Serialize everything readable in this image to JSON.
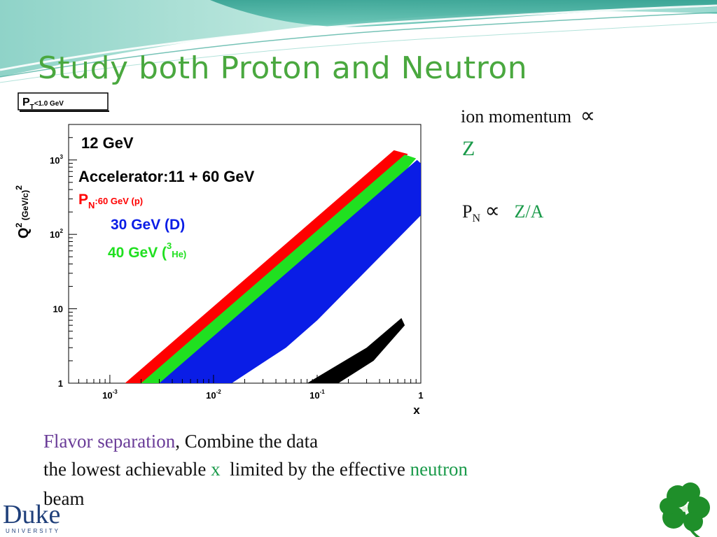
{
  "slide": {
    "title": "Study both Proton and Neutron",
    "colors": {
      "title": "#4aa83f",
      "accent_green": "#1a9a4a",
      "accent_purple": "#6a3c98"
    },
    "right_notes": {
      "line1_text": "ion momentum",
      "line1_symbol": "∝",
      "line2_var": "Z",
      "line3_var": "P",
      "line3_sub": "N",
      "line3_symbol": "∝",
      "line3_value": "Z/A"
    },
    "bottom_text": {
      "line1_highlight": "Flavor separation",
      "line1_rest": ", Combine the data",
      "line2_part1": "the lowest achievable ",
      "line2_x": "x",
      "line2_part2": "  limited by the effective ",
      "line2_neutron": "neutron",
      "line3": "beam"
    },
    "logo": {
      "name": "Duke",
      "sub": "UNIVERSITY"
    }
  },
  "chart_data": {
    "type": "scatter",
    "cut_label_main": "P",
    "cut_label_sub": "T",
    "cut_label_rest": "<1.0 GeV",
    "xlabel": "x",
    "ylabel_main": "Q",
    "ylabel_sup": "2",
    "ylabel_rest": " (GeV/c)",
    "ylabel_sup2": "2",
    "x_scale": "log",
    "y_scale": "log",
    "xlim": [
      0.0004,
      1
    ],
    "ylim": [
      1,
      3000
    ],
    "x_ticks": [
      {
        "value": 0.001,
        "base": "10",
        "exp": "-3"
      },
      {
        "value": 0.01,
        "base": "10",
        "exp": "-2"
      },
      {
        "value": 0.1,
        "base": "10",
        "exp": "-1"
      },
      {
        "value": 1,
        "base": "1",
        "exp": ""
      }
    ],
    "y_ticks": [
      {
        "value": 1,
        "base": "1",
        "exp": ""
      },
      {
        "value": 10,
        "base": "10",
        "exp": ""
      },
      {
        "value": 100,
        "base": "10",
        "exp": "2"
      },
      {
        "value": 1000,
        "base": "10",
        "exp": "3"
      }
    ],
    "legend": {
      "label_12gev": "12 GeV",
      "accelerator": "Accelerator:11 + 60 GeV",
      "proton_main": "P",
      "proton_sub": "N",
      "proton_rest": ":60 GeV (p)",
      "deuteron": "30 GeV (D)",
      "helium_prefix": "40 GeV (",
      "helium_sup": "3",
      "helium_suffix": "He)"
    },
    "series": [
      {
        "name": "60 GeV (p)",
        "color": "#ff0000",
        "region": [
          [
            0.0014,
            1
          ],
          [
            0.55,
            1350
          ],
          [
            0.75,
            1200
          ],
          [
            0.012,
            1
          ]
        ]
      },
      {
        "name": "40 GeV (3He)",
        "color": "#20e020",
        "region": [
          [
            0.002,
            1
          ],
          [
            0.7,
            1180
          ],
          [
            0.9,
            1050
          ],
          [
            0.012,
            1
          ]
        ]
      },
      {
        "name": "30 GeV (D)",
        "color": "#0a1de6",
        "region": [
          [
            0.003,
            1
          ],
          [
            0.92,
            1000
          ],
          [
            1,
            900
          ],
          [
            1,
            180
          ],
          [
            0.1,
            7
          ],
          [
            0.05,
            3
          ],
          [
            0.015,
            1
          ]
        ]
      },
      {
        "name": "12 GeV",
        "color": "#000000",
        "region": [
          [
            0.08,
            1
          ],
          [
            0.3,
            3
          ],
          [
            0.65,
            7.5
          ],
          [
            0.7,
            6
          ],
          [
            0.35,
            2
          ],
          [
            0.16,
            1
          ]
        ]
      }
    ]
  }
}
